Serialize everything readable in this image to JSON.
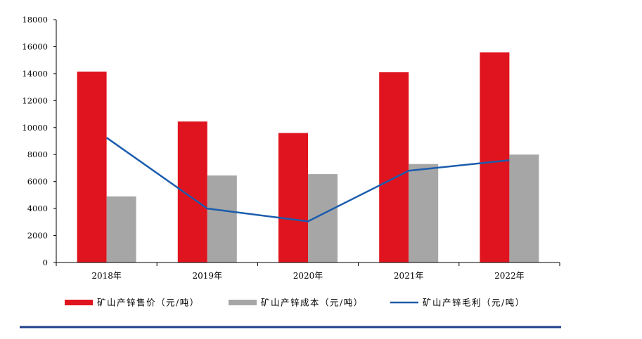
{
  "chart_data": {
    "type": "bar",
    "categories": [
      "2018年",
      "2019年",
      "2020年",
      "2021年",
      "2022年"
    ],
    "series": [
      {
        "name": "矿山产锌售价（元/吨）",
        "kind": "bar",
        "color": "#e0141e",
        "values": [
          14150,
          10450,
          9600,
          14100,
          15580
        ]
      },
      {
        "name": "矿山产锌成本（元/吨）",
        "kind": "bar",
        "color": "#a6a6a6",
        "values": [
          4900,
          6450,
          6550,
          7300,
          8000
        ]
      },
      {
        "name": "矿山产锌毛利（元/吨）",
        "kind": "line",
        "color": "#1c5cad",
        "values": [
          9250,
          4000,
          3050,
          6800,
          7580
        ]
      }
    ],
    "yticks": [
      "0",
      "2000",
      "4000",
      "6000",
      "8000",
      "10000",
      "12000",
      "14000",
      "16000",
      "18000"
    ],
    "ylim": [
      0,
      18000
    ],
    "grid": false,
    "legend_position": "bottom",
    "footer_rule_color": "#1f3f8a"
  }
}
